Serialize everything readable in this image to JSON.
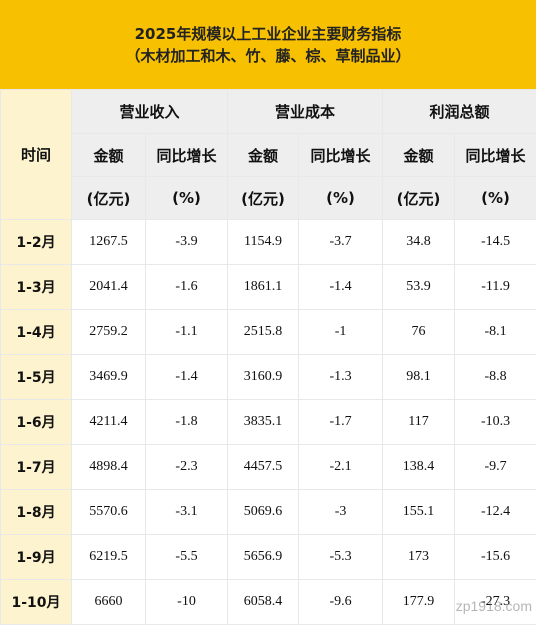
{
  "title": {
    "line1": "2025年规模以上工业企业主要财务指标",
    "line2": "（木材加工和木、竹、藤、棕、草制品业）"
  },
  "headers": {
    "time": "时间",
    "groups": [
      "营业收入",
      "营业成本",
      "利润总额"
    ],
    "amount": "金额",
    "yoy": "同比增长",
    "amount_unit": "(亿元)",
    "yoy_unit": "(%)"
  },
  "rows": [
    {
      "period": "1-2月",
      "revenue": "1267.5",
      "revenue_yoy": "-3.9",
      "cost": "1154.9",
      "cost_yoy": "-3.7",
      "profit": "34.8",
      "profit_yoy": "-14.5"
    },
    {
      "period": "1-3月",
      "revenue": "2041.4",
      "revenue_yoy": "-1.6",
      "cost": "1861.1",
      "cost_yoy": "-1.4",
      "profit": "53.9",
      "profit_yoy": "-11.9"
    },
    {
      "period": "1-4月",
      "revenue": "2759.2",
      "revenue_yoy": "-1.1",
      "cost": "2515.8",
      "cost_yoy": "-1",
      "profit": "76",
      "profit_yoy": "-8.1"
    },
    {
      "period": "1-5月",
      "revenue": "3469.9",
      "revenue_yoy": "-1.4",
      "cost": "3160.9",
      "cost_yoy": "-1.3",
      "profit": "98.1",
      "profit_yoy": "-8.8"
    },
    {
      "period": "1-6月",
      "revenue": "4211.4",
      "revenue_yoy": "-1.8",
      "cost": "3835.1",
      "cost_yoy": "-1.7",
      "profit": "117",
      "profit_yoy": "-10.3"
    },
    {
      "period": "1-7月",
      "revenue": "4898.4",
      "revenue_yoy": "-2.3",
      "cost": "4457.5",
      "cost_yoy": "-2.1",
      "profit": "138.4",
      "profit_yoy": "-9.7"
    },
    {
      "period": "1-8月",
      "revenue": "5570.6",
      "revenue_yoy": "-3.1",
      "cost": "5069.6",
      "cost_yoy": "-3",
      "profit": "155.1",
      "profit_yoy": "-12.4"
    },
    {
      "period": "1-9月",
      "revenue": "6219.5",
      "revenue_yoy": "-5.5",
      "cost": "5656.9",
      "cost_yoy": "-5.3",
      "profit": "173",
      "profit_yoy": "-15.6"
    },
    {
      "period": "1-10月",
      "revenue": "6660",
      "revenue_yoy": "-10",
      "cost": "6058.4",
      "cost_yoy": "-9.6",
      "profit": "177.9",
      "profit_yoy": "-27.3"
    }
  ],
  "watermark": "zp1918.com",
  "colors": {
    "title_bg": "#f7c000",
    "header_bg": "#eeeeee",
    "label_bg": "#fdf3cf"
  }
}
